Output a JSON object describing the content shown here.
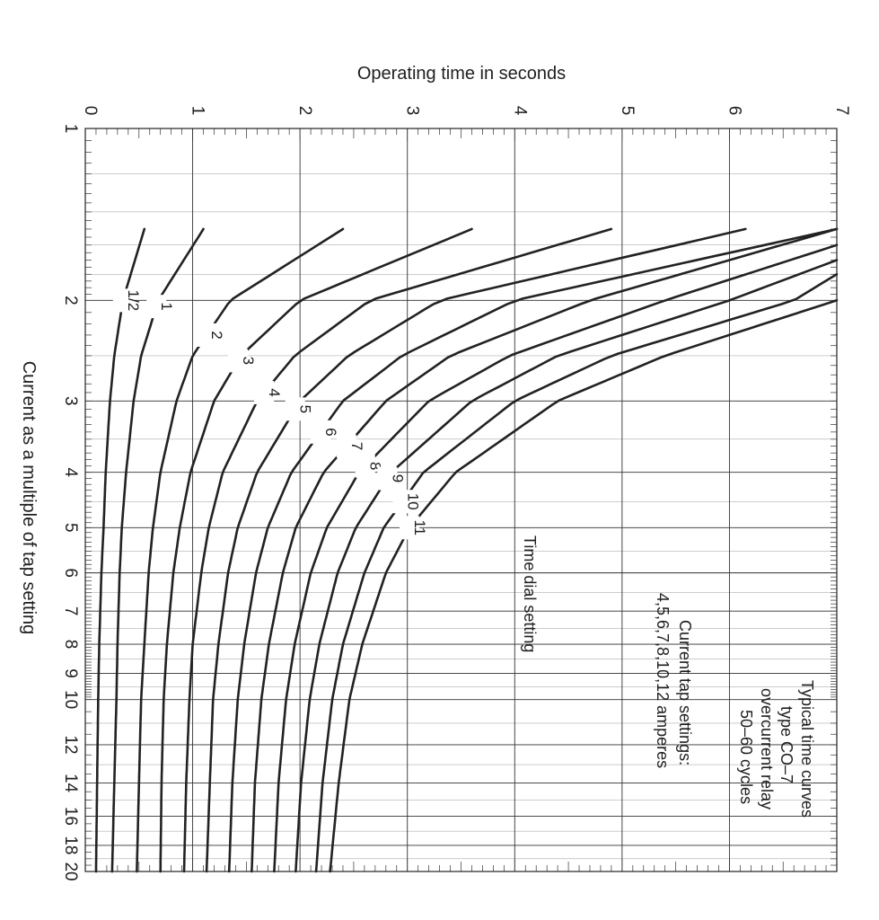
{
  "chart_data": {
    "type": "line",
    "title": "Typical time curves",
    "subtitle_lines": [
      "type CO–7",
      "overcurrent relay",
      "50–60 cycles"
    ],
    "xlabel": "Current as a multiple of tap setting",
    "ylabel": "Operating time in seconds",
    "x_scale": "log",
    "xlim": [
      1,
      20
    ],
    "ylim": [
      0,
      7
    ],
    "grid": true,
    "x_ticks": [
      1,
      2,
      3,
      4,
      5,
      6,
      7,
      8,
      9,
      10,
      12,
      14,
      16,
      18,
      20
    ],
    "x_tick_labels": [
      "1",
      "2",
      "3",
      "4",
      "5",
      "6",
      "7",
      "8",
      "9",
      "10",
      "12",
      "14",
      "16",
      "18",
      "20"
    ],
    "y_ticks": [
      0,
      1,
      2,
      3,
      4,
      5,
      6,
      7
    ],
    "y_tick_labels": [
      "0",
      "1",
      "2",
      "3",
      "4",
      "5",
      "6",
      "7"
    ],
    "annotations": {
      "time_dial_setting": "Time dial setting",
      "tap_settings_line1": "Current tap settings:",
      "tap_settings_line2": "4,5,6,7,8,10,12 amperes"
    },
    "curve_start_x": 1.5,
    "series": [
      {
        "name": "1/2",
        "label_x": 2.0,
        "x": [
          1.5,
          2,
          2.5,
          3,
          4,
          5,
          6,
          8,
          10,
          14,
          20
        ],
        "y": [
          0.55,
          0.35,
          0.27,
          0.23,
          0.19,
          0.17,
          0.15,
          0.13,
          0.12,
          0.11,
          0.1
        ]
      },
      {
        "name": "1",
        "label_x": 2.05,
        "x": [
          1.5,
          2,
          2.5,
          3,
          4,
          5,
          6,
          8,
          10,
          14,
          20
        ],
        "y": [
          1.1,
          0.68,
          0.52,
          0.45,
          0.38,
          0.34,
          0.32,
          0.3,
          0.29,
          0.27,
          0.25
        ]
      },
      {
        "name": "2",
        "label_x": 2.3,
        "x": [
          1.5,
          2,
          2.5,
          3,
          4,
          5,
          6,
          8,
          10,
          14,
          20
        ],
        "y": [
          2.4,
          1.35,
          1.0,
          0.85,
          0.7,
          0.63,
          0.59,
          0.55,
          0.52,
          0.5,
          0.48
        ]
      },
      {
        "name": "3",
        "label_x": 2.55,
        "x": [
          1.5,
          2,
          2.5,
          3,
          4,
          5,
          6,
          8,
          10,
          14,
          20
        ],
        "y": [
          3.6,
          2.0,
          1.45,
          1.2,
          0.98,
          0.88,
          0.82,
          0.76,
          0.73,
          0.71,
          0.7
        ]
      },
      {
        "name": "4",
        "label_x": 2.9,
        "x": [
          1.5,
          2,
          2.5,
          3,
          4,
          5,
          6,
          8,
          10,
          14,
          20
        ],
        "y": [
          4.9,
          2.65,
          1.95,
          1.6,
          1.28,
          1.15,
          1.08,
          1.0,
          0.97,
          0.94,
          0.92
        ]
      },
      {
        "name": "5",
        "label_x": 3.1,
        "x": [
          1.5,
          2,
          2.5,
          3,
          4,
          5,
          6,
          8,
          10,
          14,
          20
        ],
        "y": [
          6.15,
          3.3,
          2.45,
          2.0,
          1.6,
          1.42,
          1.33,
          1.24,
          1.19,
          1.16,
          1.13
        ]
      },
      {
        "name": "6",
        "label_x": 3.4,
        "x": [
          1.5,
          2,
          2.5,
          3,
          4,
          5,
          6,
          8,
          10,
          14,
          20
        ],
        "y": [
          7.0,
          4.0,
          2.95,
          2.4,
          1.92,
          1.7,
          1.59,
          1.48,
          1.42,
          1.37,
          1.34
        ]
      },
      {
        "name": "7",
        "label_x": 3.6,
        "x": [
          1.5,
          2,
          2.5,
          3,
          4,
          5,
          6,
          8,
          10,
          14,
          20
        ],
        "y": [
          7.0,
          4.7,
          3.4,
          2.8,
          2.22,
          1.96,
          1.84,
          1.71,
          1.64,
          1.58,
          1.55
        ]
      },
      {
        "name": "8",
        "label_x": 3.9,
        "x": [
          1.6,
          2,
          2.5,
          3,
          4,
          5,
          6,
          8,
          10,
          14,
          20
        ],
        "y": [
          7.0,
          5.4,
          3.95,
          3.2,
          2.55,
          2.25,
          2.1,
          1.95,
          1.87,
          1.8,
          1.76
        ]
      },
      {
        "name": "9",
        "label_x": 4.1,
        "x": [
          1.7,
          2,
          2.5,
          3,
          4,
          5,
          6,
          8,
          10,
          14,
          20
        ],
        "y": [
          7.0,
          6.0,
          4.4,
          3.6,
          2.85,
          2.52,
          2.35,
          2.18,
          2.09,
          2.01,
          1.96
        ]
      },
      {
        "name": "10",
        "label_x": 4.5,
        "x": [
          1.8,
          2,
          2.5,
          3,
          4,
          5,
          6,
          8,
          10,
          14,
          20
        ],
        "y": [
          7.0,
          6.6,
          4.9,
          4.0,
          3.15,
          2.78,
          2.6,
          2.4,
          2.3,
          2.21,
          2.15
        ]
      },
      {
        "name": "11",
        "label_x": 5.0,
        "x": [
          2.0,
          2.5,
          3,
          4,
          5,
          6,
          8,
          10,
          14,
          20
        ],
        "y": [
          7.0,
          5.4,
          4.4,
          3.45,
          3.02,
          2.8,
          2.58,
          2.46,
          2.36,
          2.28
        ]
      }
    ]
  }
}
